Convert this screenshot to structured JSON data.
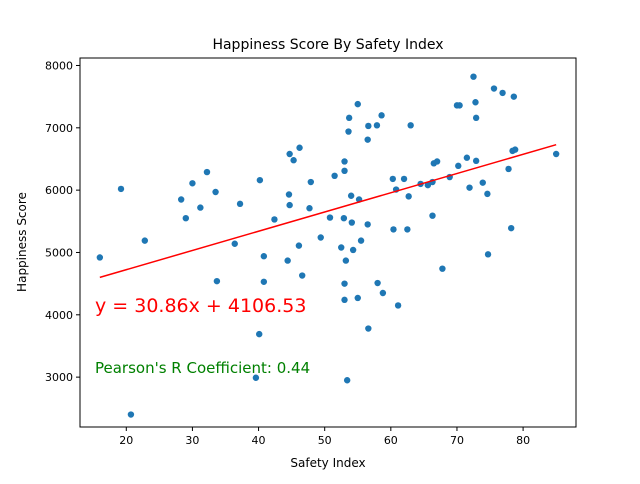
{
  "chart_data": {
    "type": "scatter",
    "title": "Happiness Score By Safety Index",
    "xlabel": "Safety Index",
    "ylabel": "Happiness Score",
    "xlim": [
      13,
      88
    ],
    "ylim": [
      2200,
      8120
    ],
    "x_ticks": [
      20,
      30,
      40,
      50,
      60,
      70,
      80
    ],
    "y_ticks": [
      3000,
      4000,
      5000,
      6000,
      7000,
      8000
    ],
    "grid": false,
    "colors": {
      "points": "#1f77b4",
      "regression": "#ff0000",
      "equation": "#ff0000",
      "pearson": "#008000"
    },
    "regression": {
      "slope": 30.86,
      "intercept": 4106.53,
      "x_range": [
        16,
        85
      ],
      "label": "y = 30.86x + 4106.53"
    },
    "pearson_label": "Pearson's R Coefficient: 0.44",
    "points": [
      [
        16.0,
        4920
      ],
      [
        19.2,
        6020
      ],
      [
        20.7,
        2400
      ],
      [
        22.8,
        5190
      ],
      [
        28.3,
        5850
      ],
      [
        29.0,
        5550
      ],
      [
        30.0,
        6110
      ],
      [
        31.2,
        5720
      ],
      [
        32.2,
        6290
      ],
      [
        33.5,
        5970
      ],
      [
        33.7,
        4540
      ],
      [
        36.4,
        5140
      ],
      [
        37.2,
        5780
      ],
      [
        39.6,
        2990
      ],
      [
        40.1,
        3690
      ],
      [
        40.2,
        6160
      ],
      [
        40.8,
        4530
      ],
      [
        40.8,
        4940
      ],
      [
        42.4,
        5530
      ],
      [
        44.4,
        4870
      ],
      [
        44.6,
        5930
      ],
      [
        44.7,
        6580
      ],
      [
        44.7,
        5760
      ],
      [
        45.3,
        6480
      ],
      [
        46.1,
        5110
      ],
      [
        46.2,
        6680
      ],
      [
        46.6,
        4630
      ],
      [
        47.7,
        5710
      ],
      [
        47.9,
        6130
      ],
      [
        49.4,
        5240
      ],
      [
        50.8,
        5560
      ],
      [
        51.5,
        6230
      ],
      [
        52.5,
        5080
      ],
      [
        52.9,
        5550
      ],
      [
        53.0,
        6310
      ],
      [
        53.0,
        6460
      ],
      [
        53.0,
        4500
      ],
      [
        53.0,
        4240
      ],
      [
        53.2,
        4870
      ],
      [
        53.4,
        2950
      ],
      [
        53.6,
        6940
      ],
      [
        53.7,
        7160
      ],
      [
        54.0,
        5910
      ],
      [
        54.1,
        5480
      ],
      [
        54.3,
        5040
      ],
      [
        55.0,
        7380
      ],
      [
        55.0,
        4270
      ],
      [
        55.2,
        5850
      ],
      [
        55.5,
        5190
      ],
      [
        56.5,
        5450
      ],
      [
        56.5,
        6810
      ],
      [
        56.6,
        7030
      ],
      [
        56.6,
        3780
      ],
      [
        57.9,
        7040
      ],
      [
        58.0,
        4510
      ],
      [
        58.6,
        7200
      ],
      [
        58.8,
        4350
      ],
      [
        60.3,
        6180
      ],
      [
        60.4,
        5370
      ],
      [
        60.8,
        6010
      ],
      [
        61.1,
        4150
      ],
      [
        62.0,
        6180
      ],
      [
        62.5,
        5370
      ],
      [
        62.7,
        5900
      ],
      [
        63.0,
        7040
      ],
      [
        64.5,
        6100
      ],
      [
        65.6,
        6080
      ],
      [
        66.3,
        5590
      ],
      [
        66.3,
        6130
      ],
      [
        66.5,
        6430
      ],
      [
        67.0,
        6460
      ],
      [
        67.8,
        4740
      ],
      [
        68.9,
        6210
      ],
      [
        70.0,
        7360
      ],
      [
        70.2,
        6390
      ],
      [
        70.4,
        7360
      ],
      [
        71.5,
        6520
      ],
      [
        71.9,
        6040
      ],
      [
        72.5,
        7820
      ],
      [
        72.8,
        7410
      ],
      [
        72.9,
        6470
      ],
      [
        72.9,
        7160
      ],
      [
        73.9,
        6120
      ],
      [
        74.6,
        5940
      ],
      [
        74.7,
        4970
      ],
      [
        75.6,
        7630
      ],
      [
        76.9,
        7560
      ],
      [
        77.8,
        6340
      ],
      [
        78.2,
        5390
      ],
      [
        78.4,
        6630
      ],
      [
        78.6,
        7500
      ],
      [
        78.8,
        6650
      ],
      [
        85.0,
        6580
      ]
    ]
  }
}
